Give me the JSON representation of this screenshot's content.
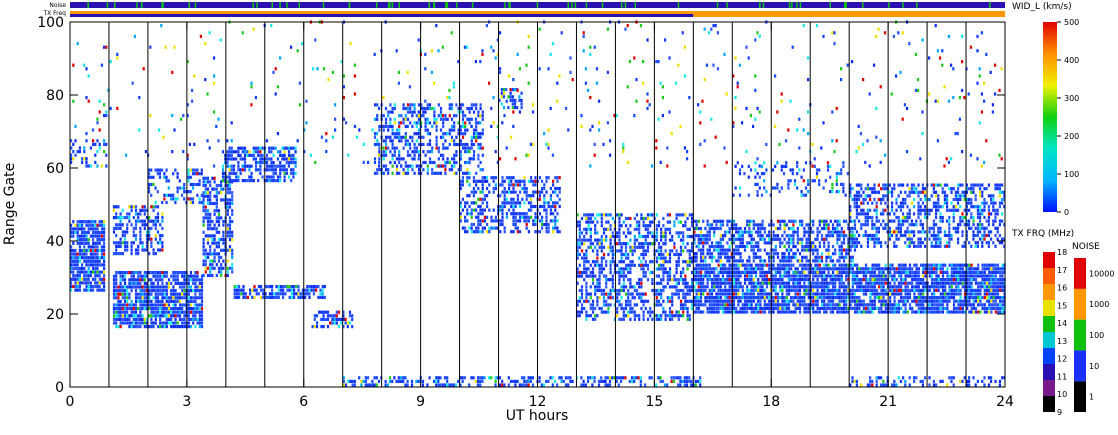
{
  "chart_data": [
    {
      "type": "heatmap",
      "title": "",
      "xlabel": "UT hours",
      "ylabel": "Range Gate",
      "xlim": [
        0,
        24
      ],
      "ylim": [
        0,
        100
      ],
      "x_ticks": [
        "0",
        "3",
        "6",
        "9",
        "12",
        "15",
        "18",
        "21",
        "24"
      ],
      "x_tick_values": [
        0,
        3,
        6,
        9,
        12,
        15,
        18,
        21,
        24
      ],
      "y_ticks": [
        "0",
        "20",
        "40",
        "60",
        "80",
        "100"
      ],
      "y_tick_values": [
        0,
        20,
        40,
        60,
        80,
        100
      ],
      "hour_gridlines": [
        1,
        2,
        3,
        4,
        5,
        6,
        7,
        8,
        9,
        10,
        11,
        12,
        13,
        14,
        15,
        16,
        17,
        18,
        19,
        20,
        21,
        22,
        23
      ],
      "bands": [
        {
          "x": [
            0.0,
            0.9
          ],
          "y": [
            26,
            46
          ],
          "density": 0.85
        },
        {
          "x": [
            0.0,
            1.0
          ],
          "y": [
            60,
            68
          ],
          "density": 0.25
        },
        {
          "x": [
            1.1,
            3.4
          ],
          "y": [
            16,
            32
          ],
          "density": 0.8
        },
        {
          "x": [
            1.1,
            2.4
          ],
          "y": [
            36,
            50
          ],
          "density": 0.45
        },
        {
          "x": [
            2.0,
            3.4
          ],
          "y": [
            50,
            60
          ],
          "density": 0.35
        },
        {
          "x": [
            3.4,
            4.2
          ],
          "y": [
            30,
            58
          ],
          "density": 0.55
        },
        {
          "x": [
            3.9,
            5.8
          ],
          "y": [
            56,
            66
          ],
          "density": 0.65
        },
        {
          "x": [
            4.2,
            6.6
          ],
          "y": [
            24,
            28
          ],
          "density": 0.7
        },
        {
          "x": [
            6.2,
            7.3
          ],
          "y": [
            16,
            21
          ],
          "density": 0.6
        },
        {
          "x": [
            7.8,
            10.6
          ],
          "y": [
            58,
            78
          ],
          "density": 0.45
        },
        {
          "x": [
            10.0,
            12.6
          ],
          "y": [
            42,
            58
          ],
          "density": 0.5
        },
        {
          "x": [
            11.0,
            11.6
          ],
          "y": [
            76,
            82
          ],
          "density": 0.5
        },
        {
          "x": [
            13.0,
            16.0
          ],
          "y": [
            18,
            48
          ],
          "density": 0.5
        },
        {
          "x": [
            16.0,
            24.0
          ],
          "y": [
            20,
            34
          ],
          "density": 0.85
        },
        {
          "x": [
            16.0,
            20.2
          ],
          "y": [
            34,
            46
          ],
          "density": 0.6
        },
        {
          "x": [
            17.0,
            20.0
          ],
          "y": [
            52,
            62
          ],
          "density": 0.2
        },
        {
          "x": [
            20.0,
            24.0
          ],
          "y": [
            38,
            56
          ],
          "density": 0.5
        },
        {
          "x": [
            7.0,
            16.2
          ],
          "y": [
            0,
            3
          ],
          "density": 0.5
        },
        {
          "x": [
            20.0,
            24.0
          ],
          "y": [
            0,
            3
          ],
          "density": 0.35
        },
        {
          "x": [
            0.0,
            24.0
          ],
          "y": [
            60,
            100
          ],
          "density": 0.03
        }
      ],
      "colors": [
        "#0c2ef0",
        "#1a3cff",
        "#2b55ff",
        "#1048ff",
        "#00a9ff",
        "#18e8e8",
        "#1ec81e",
        "#f0e000",
        "#e00000"
      ]
    },
    {
      "type": "heatmap",
      "title": "WID_L (km/s)",
      "colorbar_ticks": [
        "0",
        "100",
        "200",
        "300",
        "400",
        "500"
      ],
      "colorbar_values": [
        0,
        100,
        200,
        300,
        400,
        500
      ],
      "gradient": [
        "#0010ff",
        "#00b4ff",
        "#00e6c8",
        "#10d010",
        "#f0f000",
        "#ff9000",
        "#e00000"
      ]
    },
    {
      "type": "heatmap",
      "title": "TX FRQ (MHz)",
      "colorbar_ticks": [
        "9",
        "10",
        "11",
        "12",
        "13",
        "14",
        "15",
        "16",
        "17",
        "18"
      ],
      "colorbar_values": [
        9,
        10,
        11,
        12,
        13,
        14,
        15,
        16,
        17,
        18
      ],
      "steps": [
        "#000000",
        "#7a1a8a",
        "#2a10b0",
        "#0044ff",
        "#00c8d0",
        "#10c010",
        "#e8e000",
        "#ff9800",
        "#ff5a00",
        "#e00000"
      ]
    },
    {
      "type": "heatmap",
      "title": "NOISE",
      "colorbar_ticks": [
        "1",
        "10",
        "100",
        "1000",
        "10000"
      ],
      "colorbar_values": [
        1,
        10,
        100,
        1000,
        10000
      ],
      "steps": [
        "#000000",
        "#1a30ff",
        "#10c010",
        "#ff9800",
        "#e00000"
      ]
    }
  ],
  "status_bars": {
    "noise_label": "Noise",
    "txfreq_label": "TX Freq",
    "noise_color": "#2a10b0",
    "noise_accent": "#10c010",
    "txfreq_color_early": "#2a10b0",
    "txfreq_color_late": "#ff9800",
    "txfreq_switch_hour": 16.0
  }
}
